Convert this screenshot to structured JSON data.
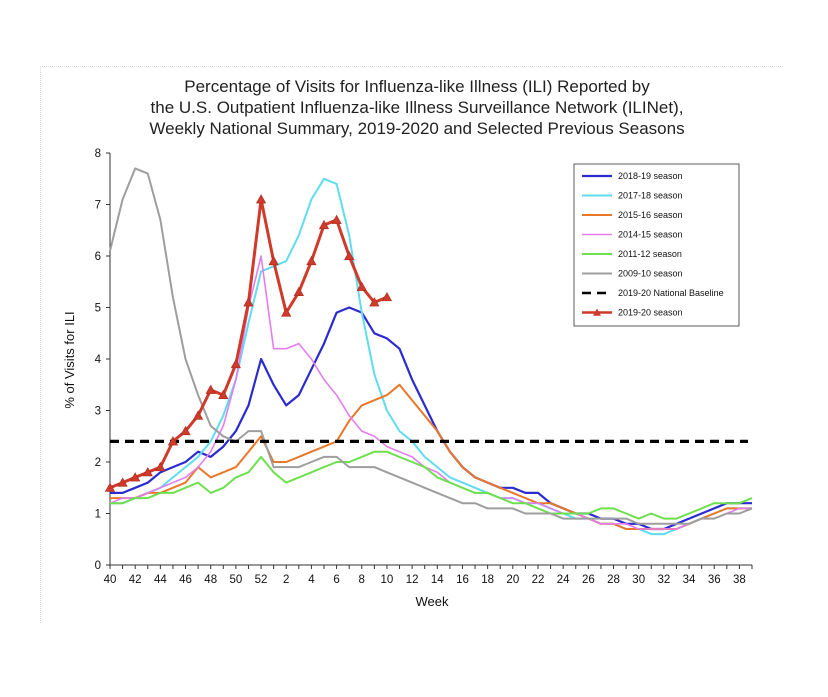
{
  "chart_data": {
    "type": "line",
    "title": [
      "Percentage of Visits for Influenza-like Illness (ILI) Reported by",
      "the U.S. Outpatient Influenza-like Illness Surveillance Network (ILINet),",
      "Weekly National Summary, 2019-2020 and Selected Previous Seasons"
    ],
    "xlabel": "Week",
    "ylabel": "% of Visits for ILI",
    "ylim": [
      0,
      8
    ],
    "yticks": [
      "0",
      "1",
      "2",
      "3",
      "4",
      "5",
      "6",
      "7",
      "8"
    ],
    "weeks": [
      40,
      41,
      42,
      43,
      44,
      45,
      46,
      47,
      48,
      49,
      50,
      51,
      52,
      1,
      2,
      3,
      4,
      5,
      6,
      7,
      8,
      9,
      10,
      11,
      12,
      13,
      14,
      15,
      16,
      17,
      18,
      19,
      20,
      21,
      22,
      23,
      24,
      25,
      26,
      27,
      28,
      29,
      30,
      31,
      32,
      33,
      34,
      35,
      36,
      37,
      38,
      39
    ],
    "xtick_labels": [
      "40",
      "42",
      "44",
      "46",
      "48",
      "50",
      "52",
      "2",
      "4",
      "6",
      "8",
      "10",
      "12",
      "14",
      "16",
      "18",
      "20",
      "22",
      "24",
      "26",
      "28",
      "30",
      "32",
      "34",
      "36",
      "38"
    ],
    "legend_position": "top-right",
    "series": [
      {
        "name": "2018-19 season",
        "color": "#2b2bd0",
        "width": 2.2,
        "marker": false,
        "values": [
          1.4,
          1.4,
          1.5,
          1.6,
          1.8,
          1.9,
          2.0,
          2.2,
          2.1,
          2.3,
          2.6,
          3.1,
          4.0,
          3.5,
          3.1,
          3.3,
          3.8,
          4.3,
          4.9,
          5.0,
          4.9,
          4.5,
          4.4,
          4.2,
          3.6,
          3.1,
          2.6,
          2.2,
          1.9,
          1.7,
          1.6,
          1.5,
          1.5,
          1.4,
          1.4,
          1.2,
          1.1,
          1.0,
          1.0,
          0.9,
          0.9,
          0.8,
          0.8,
          0.7,
          0.7,
          0.8,
          0.9,
          1.0,
          1.1,
          1.2,
          1.2,
          1.2
        ]
      },
      {
        "name": "2017-18 season",
        "color": "#5fdcef",
        "width": 2.0,
        "marker": false,
        "values": [
          1.2,
          1.2,
          1.3,
          1.4,
          1.5,
          1.7,
          1.9,
          2.1,
          2.4,
          2.9,
          3.6,
          4.7,
          5.7,
          5.8,
          5.9,
          6.4,
          7.1,
          7.5,
          7.4,
          6.4,
          4.9,
          3.7,
          3.0,
          2.6,
          2.4,
          2.1,
          1.9,
          1.7,
          1.6,
          1.5,
          1.4,
          1.3,
          1.3,
          1.2,
          1.2,
          1.1,
          1.0,
          0.9,
          0.9,
          0.8,
          0.8,
          0.7,
          0.7,
          0.6,
          0.6,
          0.7,
          0.8,
          0.9,
          1.0,
          1.1,
          1.1,
          1.1
        ]
      },
      {
        "name": "2015-16 season",
        "color": "#e8772a",
        "width": 2.0,
        "marker": false,
        "values": [
          1.3,
          1.3,
          1.3,
          1.4,
          1.4,
          1.5,
          1.6,
          1.9,
          1.7,
          1.8,
          1.9,
          2.2,
          2.5,
          2.0,
          2.0,
          2.1,
          2.2,
          2.3,
          2.4,
          2.8,
          3.1,
          3.2,
          3.3,
          3.5,
          3.2,
          2.9,
          2.6,
          2.2,
          1.9,
          1.7,
          1.6,
          1.5,
          1.4,
          1.3,
          1.2,
          1.2,
          1.1,
          1.0,
          0.9,
          0.8,
          0.8,
          0.7,
          0.7,
          0.7,
          0.7,
          0.7,
          0.8,
          0.9,
          1.0,
          1.1,
          1.1,
          1.1
        ]
      },
      {
        "name": "2014-15 season",
        "color": "#e47ef0",
        "width": 1.6,
        "marker": false,
        "values": [
          1.2,
          1.3,
          1.3,
          1.4,
          1.5,
          1.6,
          1.7,
          1.9,
          2.2,
          2.7,
          3.6,
          5.0,
          6.0,
          4.2,
          4.2,
          4.3,
          4.0,
          3.6,
          3.3,
          2.9,
          2.6,
          2.5,
          2.3,
          2.2,
          2.1,
          1.9,
          1.8,
          1.6,
          1.5,
          1.4,
          1.4,
          1.3,
          1.3,
          1.2,
          1.2,
          1.1,
          1.0,
          1.0,
          0.9,
          0.8,
          0.8,
          0.8,
          0.7,
          0.7,
          0.7,
          0.7,
          0.8,
          0.9,
          0.9,
          1.0,
          1.1,
          1.1
        ]
      },
      {
        "name": "2011-12 season",
        "color": "#6ee04e",
        "width": 2.0,
        "marker": false,
        "values": [
          1.2,
          1.2,
          1.3,
          1.3,
          1.4,
          1.4,
          1.5,
          1.6,
          1.4,
          1.5,
          1.7,
          1.8,
          2.1,
          1.8,
          1.6,
          1.7,
          1.8,
          1.9,
          2.0,
          2.0,
          2.1,
          2.2,
          2.2,
          2.1,
          2.0,
          1.9,
          1.7,
          1.6,
          1.5,
          1.4,
          1.4,
          1.3,
          1.2,
          1.2,
          1.1,
          1.0,
          1.0,
          1.0,
          1.0,
          1.1,
          1.1,
          1.0,
          0.9,
          1.0,
          0.9,
          0.9,
          1.0,
          1.1,
          1.2,
          1.2,
          1.2,
          1.3
        ]
      },
      {
        "name": "2009-10 season",
        "color": "#9e9e9e",
        "width": 2.0,
        "marker": false,
        "values": [
          6.1,
          7.1,
          7.7,
          7.6,
          6.7,
          5.2,
          4.0,
          3.3,
          2.7,
          2.5,
          2.4,
          2.6,
          2.6,
          1.9,
          1.9,
          1.9,
          2.0,
          2.1,
          2.1,
          1.9,
          1.9,
          1.9,
          1.8,
          1.7,
          1.6,
          1.5,
          1.4,
          1.3,
          1.2,
          1.2,
          1.1,
          1.1,
          1.1,
          1.0,
          1.0,
          1.0,
          0.9,
          0.9,
          0.9,
          0.9,
          0.9,
          0.9,
          0.8,
          0.8,
          0.8,
          0.8,
          0.8,
          0.9,
          0.9,
          1.0,
          1.0,
          1.1
        ]
      },
      {
        "name": "2019-20 National Baseline",
        "color": "#000000",
        "width": 3.2,
        "dash": "9 6",
        "marker": false,
        "constant": 2.4
      },
      {
        "name": "2019-20 season",
        "color": "#cf3a2a",
        "width": 3.0,
        "marker": true,
        "values": [
          1.5,
          1.6,
          1.7,
          1.8,
          1.9,
          2.4,
          2.6,
          2.9,
          3.4,
          3.3,
          3.9,
          5.1,
          7.1,
          5.9,
          4.9,
          5.3,
          5.9,
          6.6,
          6.7,
          6.0,
          5.4,
          5.1,
          5.2
        ]
      }
    ]
  }
}
